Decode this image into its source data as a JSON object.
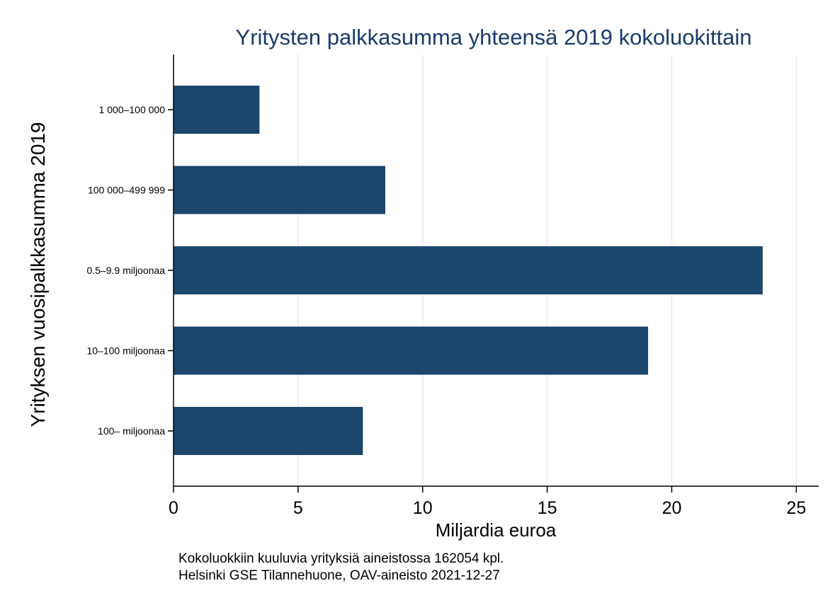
{
  "chart_data": {
    "type": "bar",
    "orientation": "horizontal",
    "title": "Yritysten palkkasumma yhteensä 2019 kokoluokittain",
    "xlabel": "Miljardia euroa",
    "ylabel": "Yrityksen vuosipalkkasumma 2019",
    "categories": [
      "1 000–100 000",
      "100 000–499 999",
      "0.5–9.9 miljoonaa",
      "10–100 miljoonaa",
      "100– miljoonaa"
    ],
    "values": [
      3.45,
      8.5,
      23.65,
      19.05,
      7.6
    ],
    "xlim": [
      0,
      25.9
    ],
    "xticks": [
      0,
      5,
      10,
      15,
      20,
      25
    ],
    "grid": true,
    "bar_color": "#1c466c",
    "notes": [
      "Kokoluokkiin kuuluvia yrityksiä aineistossa 162054 kpl.",
      "Helsinki GSE Tilannehuone, OAV-aineisto 2021-12-27"
    ]
  }
}
